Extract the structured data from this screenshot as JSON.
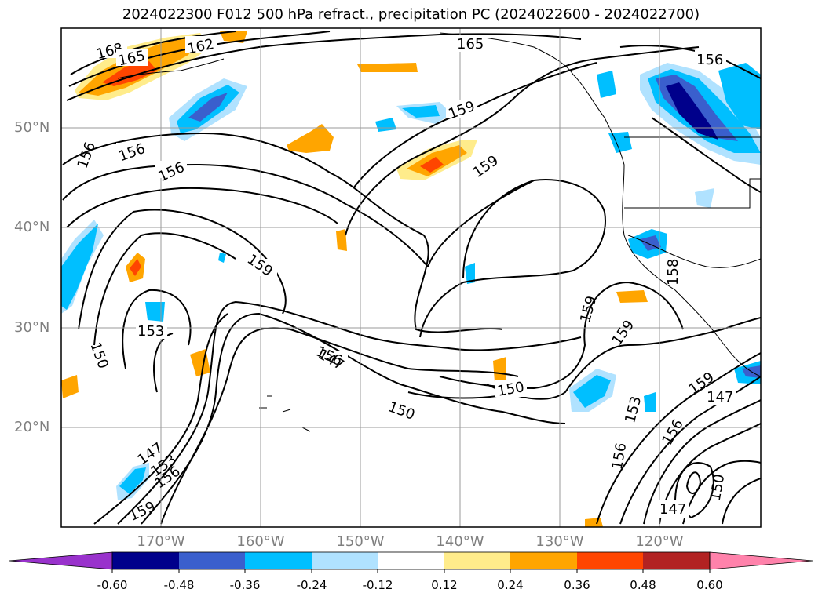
{
  "title": "2024022300 F012 500 hPa refract., precipitation PC (2024022600 - 2024022700)",
  "axes": {
    "lat_labels": [
      "50°N",
      "40°N",
      "30°N",
      "20°N"
    ],
    "lon_labels": [
      "170°W",
      "160°W",
      "150°W",
      "140°W",
      "130°W",
      "120°W"
    ],
    "label_color": "#7f7f7f"
  },
  "contour_labels": [
    "168",
    "165",
    "162",
    "165",
    "156",
    "156",
    "156",
    "159",
    "159",
    "159",
    "153",
    "150",
    "159",
    "156",
    "147",
    "150",
    "150",
    "156",
    "159",
    "153",
    "156",
    "159",
    "147",
    "147",
    "153",
    "156",
    "159",
    "158",
    "150",
    "147",
    "156"
  ],
  "colorbar": {
    "ticks": [
      "-0.60",
      "-0.48",
      "-0.36",
      "-0.24",
      "-0.12",
      "0.12",
      "0.24",
      "0.36",
      "0.48",
      "0.60"
    ],
    "colors": [
      "#9932cc",
      "#00008b",
      "#3a5fcd",
      "#00bfff",
      "#b0e2ff",
      "#ffffff",
      "#ffec8b",
      "#ffa500",
      "#ff4500",
      "#b22222",
      "#ff82ab"
    ]
  },
  "palette": {
    "neg_purple": "#9932cc",
    "neg_navy": "#00008b",
    "neg_blue": "#3a5fcd",
    "neg_cyan": "#00bfff",
    "neg_light": "#b0e2ff",
    "pos_yellow": "#ffec8b",
    "pos_orange": "#ffa500",
    "pos_red": "#ff4500",
    "pos_darkred": "#b22222",
    "pos_pink": "#ff82ab"
  }
}
